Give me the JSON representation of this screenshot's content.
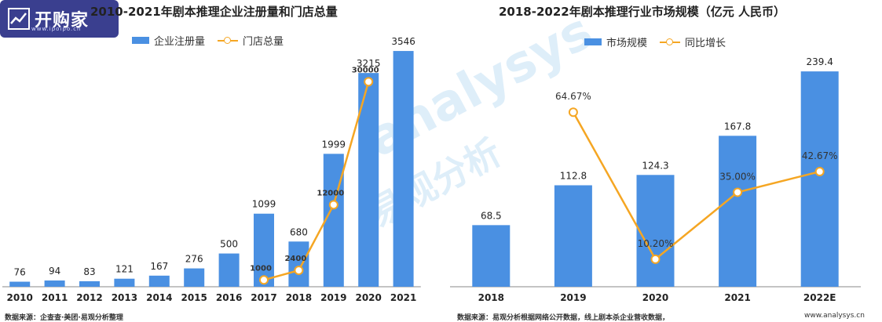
{
  "logo": {
    "name": "开购家",
    "site": "www.ipoipo.cn"
  },
  "watermark": {
    "brand": "analysys",
    "cn": "易观分析"
  },
  "site_footer": "www.analysys.cn",
  "chart_data": [
    {
      "type": "bar",
      "title": "2010-2021年剧本推理企业注册量和门店总量",
      "categories": [
        "2010",
        "2011",
        "2012",
        "2013",
        "2014",
        "2015",
        "2016",
        "2017",
        "2018",
        "2019",
        "2020",
        "2021"
      ],
      "series": [
        {
          "name": "企业注册量",
          "kind": "bar",
          "color": "#4a90e2",
          "values": [
            76,
            94,
            83,
            121,
            167,
            276,
            500,
            1099,
            680,
            1999,
            3215,
            3546
          ],
          "labels": [
            "76",
            "94",
            "83",
            "121",
            "167",
            "276",
            "500",
            "1099",
            "680",
            "1999",
            "3215",
            "3546"
          ]
        },
        {
          "name": "门店总量",
          "kind": "line",
          "color": "#f5a623",
          "values": [
            null,
            null,
            null,
            null,
            null,
            null,
            null,
            1000,
            2400,
            12000,
            30000,
            null
          ],
          "labels": [
            "",
            "",
            "",
            "",
            "",
            "",
            "",
            "1000",
            "2400",
            "12000",
            "30000",
            ""
          ]
        }
      ],
      "bar_ylim": [
        0,
        3700
      ],
      "line_ylim": [
        0,
        36000
      ],
      "grid": false,
      "legend": "top-center",
      "source": "数据来源：企查查·美团·易观分析整理"
    },
    {
      "type": "bar",
      "title": "2018-2022年剧本推理行业市场规模（亿元 人民币）",
      "categories": [
        "2018",
        "2019",
        "2020",
        "2021",
        "2022E"
      ],
      "series": [
        {
          "name": "市场规模",
          "kind": "bar",
          "color": "#4a90e2",
          "values": [
            68.5,
            112.8,
            124.3,
            167.8,
            239.4
          ],
          "labels": [
            "68.5",
            "112.8",
            "124.3",
            "167.8",
            "239.4"
          ]
        },
        {
          "name": "同比增长",
          "kind": "line",
          "color": "#f5a623",
          "values": [
            null,
            64.67,
            10.2,
            35.0,
            42.67
          ],
          "labels": [
            "",
            "64.67%",
            "10.20%",
            "35.00%",
            "42.67%"
          ]
        }
      ],
      "bar_ylim": [
        0,
        270
      ],
      "line_ylim": [
        0,
        90
      ],
      "grid": false,
      "legend": "top-center",
      "source": "数据来源：易观分析根据网络公开数据，线上剧本杀企业营收数据，"
    }
  ]
}
